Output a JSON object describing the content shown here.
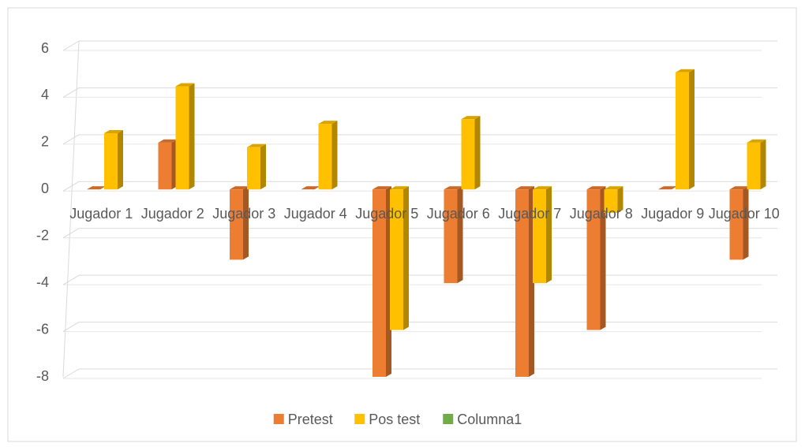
{
  "chart_data": {
    "type": "bar",
    "categories": [
      "Jugador 1",
      "Jugador 2",
      "Jugador 3",
      "Jugador 4",
      "Jugador 5",
      "Jugador 6",
      "Jugador 7",
      "Jugador 8",
      "Jugador 9",
      "Jugador 10"
    ],
    "series": [
      {
        "name": "Pretest",
        "color": "#ED7D31",
        "values": [
          0,
          2,
          -3,
          0,
          -8,
          -4,
          -8,
          -6,
          0,
          -3
        ]
      },
      {
        "name": "Pos test",
        "color": "#FFC000",
        "values": [
          2.4,
          4.4,
          1.8,
          2.8,
          -6,
          3,
          -4,
          -1,
          5,
          2
        ]
      },
      {
        "name": "Columna1",
        "color": "#70AD47",
        "values": [
          null,
          null,
          null,
          null,
          null,
          null,
          null,
          null,
          null,
          null
        ]
      }
    ],
    "ylim": [
      -8,
      6
    ],
    "yticks": [
      -8,
      -6,
      -4,
      -2,
      0,
      2,
      4,
      6
    ],
    "grid": true,
    "legend": "bottom"
  }
}
